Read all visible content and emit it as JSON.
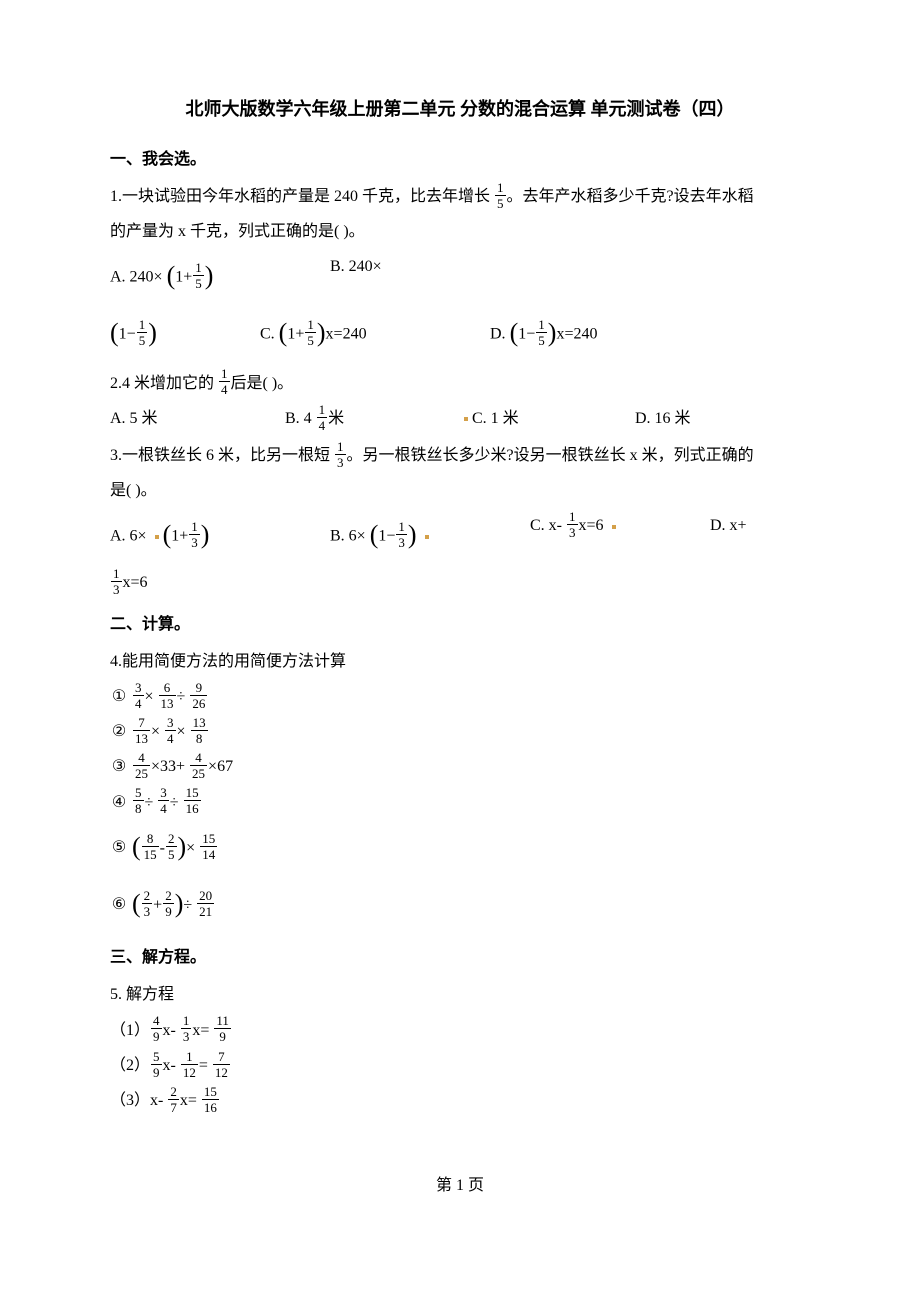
{
  "title": "北师大版数学六年级上册第二单元 分数的混合运算 单元测试卷（四）",
  "sections": {
    "s1": "一、我会选。",
    "s2": "二、计算。",
    "s3": "三、解方程。"
  },
  "q1": {
    "stem_a": "1.一块试验田今年水稻的产量是 240 千克，比去年增长 ",
    "frac": {
      "n": "1",
      "d": "5"
    },
    "stem_b": "。去年产水稻多少千克?设去年水稻",
    "stem_c": "的产量为 x 千克，列式正确的是(   )。",
    "A_pre": "A. 240× ",
    "A_in_pre": "1+",
    "A_frac": {
      "n": "1",
      "d": "5"
    },
    "B_pre": "B. 240×",
    "line2_paren_pre": "1−",
    "line2_frac": {
      "n": "1",
      "d": "5"
    },
    "C_pre": "C. ",
    "C_in_pre": "1+",
    "C_frac": {
      "n": "1",
      "d": "5"
    },
    "C_post": "x=240",
    "D_pre": "D. ",
    "D_in_pre": "1−",
    "D_frac": {
      "n": "1",
      "d": "5"
    },
    "D_post": "x=240"
  },
  "q2": {
    "stem_a": "2.4 米增加它的 ",
    "frac": {
      "n": "1",
      "d": "4"
    },
    "stem_b": "后是(   )。",
    "A": "A. 5 米",
    "B_pre": "B. 4 ",
    "B_frac": {
      "n": "1",
      "d": "4"
    },
    "B_post": "米",
    "C": "C. 1 米",
    "D": "D. 16 米"
  },
  "q3": {
    "stem_a": "3.一根铁丝长 6 米，比另一根短 ",
    "frac": {
      "n": "1",
      "d": "3"
    },
    "stem_b": "。另一根铁丝长多少米?设另一根铁丝长 x 米，列式正确的",
    "stem_c": "是(   )。",
    "A_pre": "A. 6× ",
    "A_in_pre": "1+",
    "A_frac": {
      "n": "1",
      "d": "3"
    },
    "B_pre": "B. 6× ",
    "B_in_pre": "1−",
    "B_frac": {
      "n": "1",
      "d": "3"
    },
    "C_pre": "C. x- ",
    "C_frac": {
      "n": "1",
      "d": "3"
    },
    "C_post": "x=6",
    "D_pre": "D. x+",
    "tail_frac": {
      "n": "1",
      "d": "3"
    },
    "tail_post": "x=6"
  },
  "q4": {
    "stem": "4.能用简便方法的用简便方法计算",
    "items": [
      {
        "circ": "①",
        "parts": [
          {
            "f": {
              "n": "3",
              "d": "4"
            }
          },
          {
            "t": "× "
          },
          {
            "f": {
              "n": "6",
              "d": "13"
            }
          },
          {
            "t": "÷ "
          },
          {
            "f": {
              "n": "9",
              "d": "26"
            }
          }
        ]
      },
      {
        "circ": "②",
        "parts": [
          {
            "f": {
              "n": "7",
              "d": "13"
            }
          },
          {
            "t": "× "
          },
          {
            "f": {
              "n": "3",
              "d": "4"
            }
          },
          {
            "t": "× "
          },
          {
            "f": {
              "n": "13",
              "d": "8"
            }
          }
        ]
      },
      {
        "circ": "③",
        "parts": [
          {
            "f": {
              "n": "4",
              "d": "25"
            }
          },
          {
            "t": "×33+ "
          },
          {
            "f": {
              "n": "4",
              "d": "25"
            }
          },
          {
            "t": "×67"
          }
        ]
      },
      {
        "circ": "④",
        "parts": [
          {
            "f": {
              "n": "5",
              "d": "8"
            }
          },
          {
            "t": "÷ "
          },
          {
            "f": {
              "n": "3",
              "d": "4"
            }
          },
          {
            "t": "÷ "
          },
          {
            "f": {
              "n": "15",
              "d": "16"
            }
          }
        ]
      },
      {
        "circ": "⑤",
        "parts": [
          {
            "pl": true
          },
          {
            "f": {
              "n": "8",
              "d": "15"
            }
          },
          {
            "t": "-"
          },
          {
            "f": {
              "n": "2",
              "d": "5"
            }
          },
          {
            "pr": true
          },
          {
            "t": "× "
          },
          {
            "f": {
              "n": "15",
              "d": "14"
            }
          }
        ]
      },
      {
        "circ": "⑥",
        "parts": [
          {
            "pl": true
          },
          {
            "f": {
              "n": "2",
              "d": "3"
            }
          },
          {
            "t": "+"
          },
          {
            "f": {
              "n": "2",
              "d": "9"
            }
          },
          {
            "pr": true
          },
          {
            "t": "÷ "
          },
          {
            "f": {
              "n": "20",
              "d": "21"
            }
          }
        ]
      }
    ]
  },
  "q5": {
    "stem": "5. 解方程",
    "items": [
      {
        "no": "（1）",
        "parts": [
          {
            "f": {
              "n": "4",
              "d": "9"
            }
          },
          {
            "t": "x- "
          },
          {
            "f": {
              "n": "1",
              "d": "3"
            }
          },
          {
            "t": "x= "
          },
          {
            "f": {
              "n": "11",
              "d": "9"
            }
          }
        ]
      },
      {
        "no": "（2）",
        "parts": [
          {
            "f": {
              "n": "5",
              "d": "9"
            }
          },
          {
            "t": "x- "
          },
          {
            "f": {
              "n": "1",
              "d": "12"
            }
          },
          {
            "t": "= "
          },
          {
            "f": {
              "n": "7",
              "d": "12"
            }
          }
        ]
      },
      {
        "no": "（3）",
        "parts": [
          {
            "t": "x- "
          },
          {
            "f": {
              "n": "2",
              "d": "7"
            }
          },
          {
            "t": "x= "
          },
          {
            "f": {
              "n": "15",
              "d": "16"
            }
          }
        ]
      }
    ]
  },
  "footer": {
    "pre": "第 ",
    "num": "1",
    "post": " 页"
  }
}
